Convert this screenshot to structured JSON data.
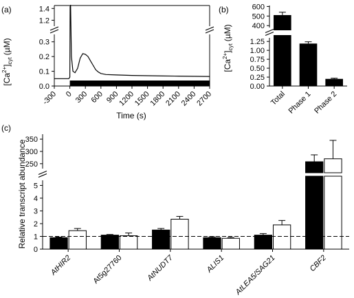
{
  "chart_data": [
    {
      "panel": "(a)",
      "type": "line",
      "ylabel_main": "[Ca",
      "ylabel_sup": "2+",
      "ylabel_close": "]",
      "ylabel_sub": "cyt",
      "ylabel_unit": "(µM)",
      "xlabel": "Time (s)",
      "xlim": [
        -300,
        2700
      ],
      "xticks": [
        -300,
        0,
        300,
        600,
        900,
        1200,
        1500,
        1800,
        2100,
        2400,
        2700
      ],
      "ylim_lower": [
        0,
        0.35
      ],
      "yticks_lower": [
        0.0,
        0.1,
        0.2,
        0.3
      ],
      "ylim_upper": [
        1.1,
        1.45
      ],
      "yticks_upper": [
        1.2,
        1.4
      ],
      "ytick_labels_lower": [
        "0.0",
        "0.1",
        "0.2",
        "0.3"
      ],
      "ytick_labels_upper": [
        "1.2",
        "1.4"
      ],
      "treatment_bar": [
        0,
        2700
      ],
      "x": [
        -300,
        -200,
        -100,
        -20,
        0,
        5,
        15,
        30,
        60,
        100,
        150,
        200,
        250,
        300,
        350,
        400,
        450,
        500,
        550,
        600,
        700,
        900,
        1200,
        1500,
        1800,
        2100,
        2400,
        2700
      ],
      "y": [
        0.05,
        0.05,
        0.05,
        0.05,
        0.06,
        1.43,
        0.55,
        0.2,
        0.1,
        0.09,
        0.12,
        0.19,
        0.22,
        0.215,
        0.2,
        0.17,
        0.14,
        0.11,
        0.095,
        0.085,
        0.078,
        0.075,
        0.072,
        0.07,
        0.068,
        0.067,
        0.066,
        0.065
      ]
    },
    {
      "panel": "(b)",
      "type": "bar",
      "ylabel_main": "[Ca",
      "ylabel_sup": "2+",
      "ylabel_close": "]",
      "ylabel_sub": "cyt",
      "ylabel_unit": "(µM)",
      "categories": [
        "Total",
        "Phase 1",
        "Phase 2"
      ],
      "values": [
        510,
        1.19,
        0.2
      ],
      "errors": [
        30,
        0.05,
        0.02
      ],
      "ylim_lower": [
        0,
        1.35
      ],
      "yticks_lower": [
        0.0,
        0.25,
        0.5,
        0.75,
        1.0,
        1.25
      ],
      "ytick_labels_lower": [
        "0.00",
        "0.25",
        "0.50",
        "0.75",
        "1.00",
        "1.25"
      ],
      "ylim_upper": [
        380,
        610
      ],
      "yticks_upper": [
        400,
        500,
        600
      ],
      "ytick_labels_upper": [
        "400",
        "500",
        "600"
      ]
    },
    {
      "panel": "(c)",
      "type": "bar",
      "ylabel": "Relative transcript abundance",
      "categories": [
        "AtHIR2",
        "At5g27760",
        "AtNUDT7",
        "ALIS1",
        "AtLEA5/SAG21",
        "CBF2"
      ],
      "italic_categories": [
        true,
        false,
        true,
        true,
        true,
        true
      ],
      "series": [
        {
          "fill": "#000000",
          "values": [
            0.9,
            1.1,
            1.5,
            0.9,
            1.1,
            258
          ],
          "errors": [
            0.05,
            0.05,
            0.12,
            0.07,
            0.12,
            28
          ]
        },
        {
          "fill": "#ffffff",
          "values": [
            1.45,
            1.05,
            2.35,
            0.85,
            1.9,
            270
          ],
          "errors": [
            0.17,
            0.22,
            0.22,
            0.07,
            0.35,
            75
          ]
        }
      ],
      "reference_line": 1,
      "ylim_lower": [
        0,
        5.4
      ],
      "yticks_lower": [
        0,
        1,
        2,
        3,
        4,
        5
      ],
      "ylim_upper": [
        230,
        370
      ],
      "yticks_upper": [
        250,
        300,
        350
      ]
    }
  ]
}
